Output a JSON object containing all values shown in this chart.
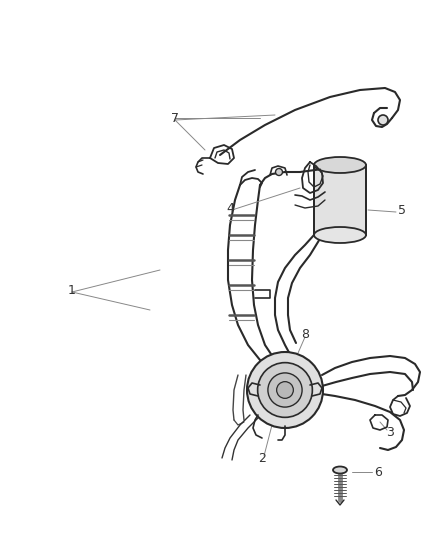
{
  "background_color": "#ffffff",
  "line_color": "#2a2a2a",
  "label_color": "#333333",
  "fig_width": 4.39,
  "fig_height": 5.33,
  "dpi": 100
}
